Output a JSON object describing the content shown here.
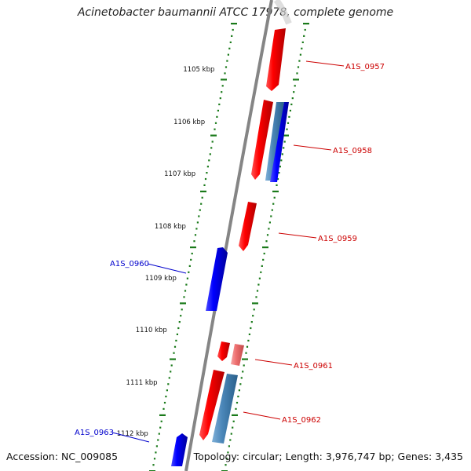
{
  "title": "Acinetobacter baumannii ATCC 17978, complete genome",
  "footer": {
    "accession": "Accession: NC_009085",
    "summary": "Topology: circular; Length: 3,976,747 bp; Genes: 3,435"
  },
  "colors": {
    "forward": "#ff0000",
    "reverse": "#0000ff",
    "forward_pseudo": "#f07878",
    "reverse_pseudo": "#4a86b8",
    "tick": "#1a7a1a",
    "backbone": "#808080"
  },
  "scale": {
    "unit": "kbp",
    "ticks": [
      {
        "label": "1105 kbp"
      },
      {
        "label": "1106 kbp"
      },
      {
        "label": "1107 kbp"
      },
      {
        "label": "1108 kbp"
      },
      {
        "label": "1109 kbp"
      },
      {
        "label": "1110 kbp"
      },
      {
        "label": "1111 kbp"
      },
      {
        "label": "1112 kbp"
      }
    ]
  },
  "gene_labels": [
    {
      "name": "A1S_0957",
      "strand": "forward"
    },
    {
      "name": "A1S_0958",
      "strand": "forward"
    },
    {
      "name": "A1S_0959",
      "strand": "forward"
    },
    {
      "name": "A1S_0960",
      "strand": "reverse"
    },
    {
      "name": "A1S_0961",
      "strand": "forward"
    },
    {
      "name": "A1S_0962",
      "strand": "forward"
    },
    {
      "name": "A1S_0963",
      "strand": "reverse"
    }
  ]
}
